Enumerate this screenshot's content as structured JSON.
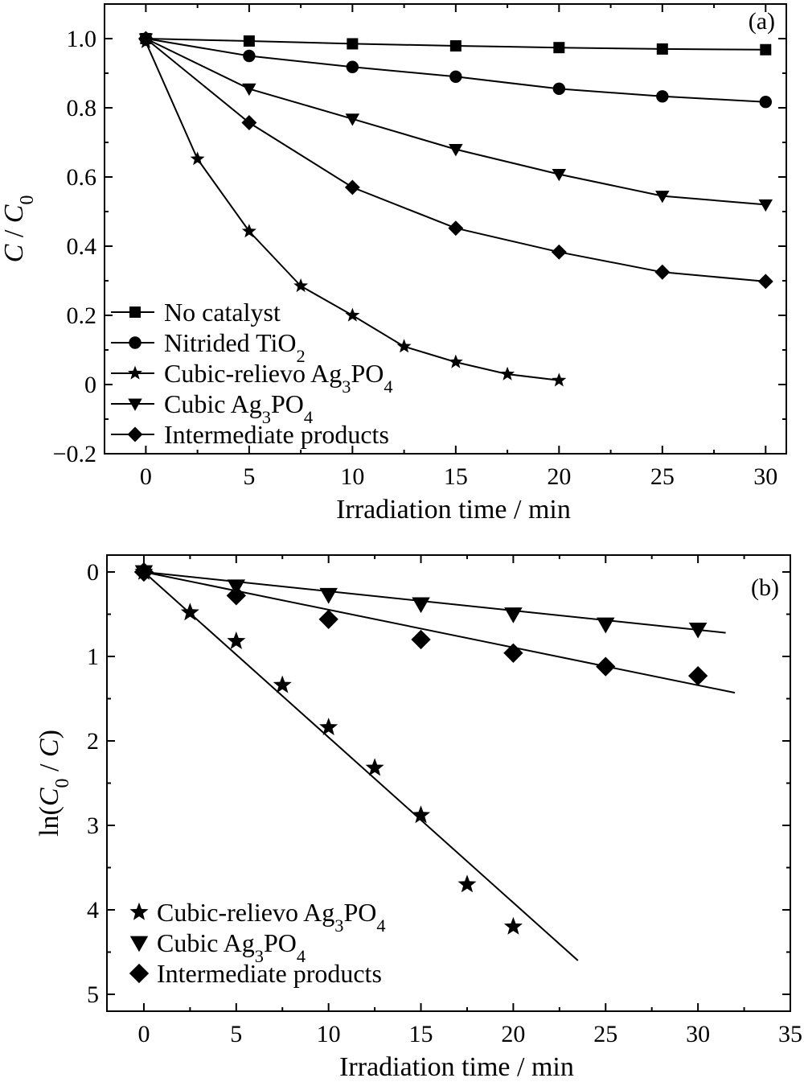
{
  "chart_data": [
    {
      "type": "line",
      "panel_label": "(a)",
      "xlabel": "Irradiation time / min",
      "ylabel_parts": [
        "C",
        " / ",
        "C",
        "0"
      ],
      "xlim": [
        -2,
        31
      ],
      "ylim": [
        -0.2,
        1.1
      ],
      "xticks": [
        0,
        5,
        10,
        15,
        20,
        25,
        30
      ],
      "xtick_labels": [
        "0",
        "5",
        "10",
        "15",
        "20",
        "25",
        "30"
      ],
      "yticks": [
        -0.2,
        0,
        0.2,
        0.4,
        0.6,
        0.8,
        1.0
      ],
      "ytick_labels": [
        "−0.2",
        "0",
        "0.2",
        "0.4",
        "0.6",
        "0.8",
        "1.0"
      ],
      "legend_position": "bottom-left",
      "series": [
        {
          "name_parts": [
            "No catalyst"
          ],
          "marker": "square",
          "x": [
            0,
            5,
            10,
            15,
            20,
            25,
            30
          ],
          "y": [
            1.0,
            0.993,
            0.985,
            0.979,
            0.974,
            0.97,
            0.968
          ]
        },
        {
          "name_parts": [
            "Nitrided TiO",
            "2"
          ],
          "marker": "circle",
          "x": [
            0,
            5,
            10,
            15,
            20,
            25,
            30
          ],
          "y": [
            1.0,
            0.95,
            0.918,
            0.89,
            0.855,
            0.833,
            0.817
          ]
        },
        {
          "name_parts": [
            "Cubic-relievo Ag",
            "3",
            "PO",
            "4"
          ],
          "marker": "star",
          "x": [
            0,
            2.5,
            5,
            7.5,
            10,
            12.5,
            15,
            17.5,
            20
          ],
          "y": [
            0.99,
            0.652,
            0.443,
            0.285,
            0.2,
            0.11,
            0.065,
            0.03,
            0.012
          ]
        },
        {
          "name_parts": [
            "Cubic Ag",
            "3",
            "PO",
            "4"
          ],
          "marker": "triangle-down",
          "x": [
            0,
            5,
            10,
            15,
            20,
            25,
            30
          ],
          "y": [
            1.0,
            0.855,
            0.768,
            0.68,
            0.608,
            0.545,
            0.52
          ]
        },
        {
          "name_parts": [
            "Intermediate products"
          ],
          "marker": "diamond",
          "x": [
            0,
            5,
            10,
            15,
            20,
            25,
            30
          ],
          "y": [
            1.0,
            0.757,
            0.57,
            0.452,
            0.383,
            0.325,
            0.298
          ]
        }
      ]
    },
    {
      "type": "scatter",
      "panel_label": "(b)",
      "xlabel": "Irradiation time / min",
      "ylabel_parts": [
        "ln(",
        "C",
        "0",
        " / ",
        "C",
        ")"
      ],
      "xlim": [
        -2,
        35
      ],
      "ylim": [
        -0.2,
        5.2
      ],
      "y_inverted": true,
      "xticks": [
        0,
        5,
        10,
        15,
        20,
        25,
        30,
        35
      ],
      "xtick_labels": [
        "0",
        "5",
        "10",
        "15",
        "20",
        "25",
        "30",
        "35"
      ],
      "yticks": [
        0,
        1,
        2,
        3,
        4,
        5
      ],
      "ytick_labels": [
        "0",
        "1",
        "2",
        "3",
        "4",
        "5"
      ],
      "legend_position": "bottom-left",
      "series": [
        {
          "name_parts": [
            "Cubic-relievo Ag",
            "3",
            "PO",
            "4"
          ],
          "marker": "star",
          "x": [
            0,
            2.5,
            5,
            7.5,
            10,
            12.5,
            15,
            17.5,
            20
          ],
          "y": [
            0,
            0.48,
            0.82,
            1.34,
            1.84,
            2.32,
            2.88,
            3.7,
            4.2
          ],
          "fit": {
            "x": [
              0,
              23.5
            ],
            "y": [
              0,
              4.6
            ]
          }
        },
        {
          "name_parts": [
            "Cubic Ag",
            "3",
            "PO",
            "4"
          ],
          "marker": "triangle-down",
          "x": [
            0,
            5,
            10,
            15,
            20,
            25,
            30
          ],
          "y": [
            0,
            0.17,
            0.27,
            0.38,
            0.5,
            0.62,
            0.68
          ],
          "fit": {
            "x": [
              0,
              31.5
            ],
            "y": [
              0,
              0.72
            ]
          }
        },
        {
          "name_parts": [
            "Intermediate products"
          ],
          "marker": "diamond",
          "x": [
            0,
            5,
            10,
            15,
            20,
            25,
            30
          ],
          "y": [
            0,
            0.28,
            0.56,
            0.8,
            0.96,
            1.12,
            1.23
          ],
          "fit": {
            "x": [
              0,
              32
            ],
            "y": [
              0,
              1.43
            ]
          }
        }
      ]
    }
  ]
}
